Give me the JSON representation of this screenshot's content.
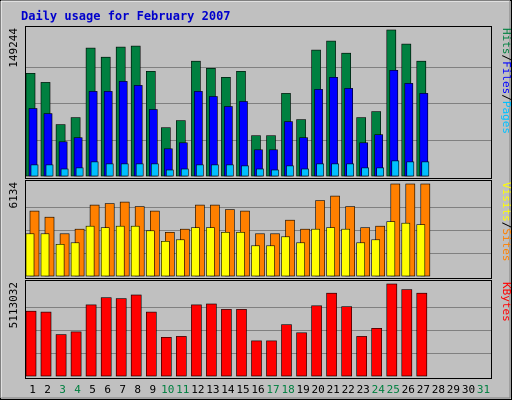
{
  "chart_data": {
    "type": "bar",
    "title": "Daily usage for February 2007",
    "categories": [
      "1",
      "2",
      "3",
      "4",
      "5",
      "6",
      "7",
      "8",
      "9",
      "10",
      "11",
      "12",
      "13",
      "14",
      "15",
      "16",
      "17",
      "18",
      "19",
      "20",
      "21",
      "22",
      "23",
      "24",
      "25",
      "26",
      "27",
      "28",
      "29",
      "30",
      "31"
    ],
    "weekend_days": [
      "3",
      "4",
      "10",
      "11",
      "17",
      "18",
      "24",
      "25",
      "31"
    ],
    "panels": [
      {
        "max_label": "149244",
        "legend": [
          {
            "text": "Pages",
            "color": "#00c0ff"
          },
          {
            "text": "Files",
            "color": "#0000ff"
          },
          {
            "text": "Hits",
            "color": "#008040"
          }
        ],
        "series": [
          {
            "name": "Hits",
            "color": "#008040",
            "values": [
              102000,
              93000,
              51000,
              58000,
              127000,
              118000,
              128000,
              129000,
              104000,
              48000,
              55000,
              114000,
              107000,
              98000,
              104000,
              40000,
              40000,
              82000,
              56000,
              125000,
              134000,
              122000,
              58000,
              64000,
              145000,
              131000,
              114000,
              0,
              0,
              0,
              0
            ]
          },
          {
            "name": "Files",
            "color": "#0000ff",
            "values": [
              67000,
              62000,
              34000,
              38000,
              84000,
              84000,
              94000,
              90000,
              66000,
              27000,
              33000,
              84000,
              79000,
              69000,
              74000,
              26000,
              26000,
              54000,
              38000,
              86000,
              98000,
              87000,
              33000,
              41000,
              105000,
              92000,
              82000,
              0,
              0,
              0,
              0
            ]
          },
          {
            "name": "Pages",
            "color": "#00c0ff",
            "values": [
              11000,
              11000,
              7000,
              8000,
              14000,
              12000,
              12000,
              12000,
              12000,
              6000,
              7000,
              11000,
              11000,
              11000,
              10000,
              7000,
              6000,
              10000,
              7000,
              12000,
              12000,
              12000,
              8000,
              8000,
              15000,
              14000,
              14000,
              0,
              0,
              0,
              0
            ]
          }
        ]
      },
      {
        "max_label": "6134",
        "legend": [
          {
            "text": "Sites",
            "color": "#ff8000"
          },
          {
            "text": "Visits",
            "color": "#ffff00"
          }
        ],
        "series": [
          {
            "name": "Visits",
            "color": "#ff8000",
            "values": [
              4300,
              3900,
              2800,
              3100,
              4700,
              4800,
              4900,
              4600,
              4300,
              2900,
              3100,
              4700,
              4700,
              4400,
              4300,
              2800,
              2800,
              3700,
              3100,
              5000,
              5300,
              4600,
              3200,
              3300,
              6100,
              6100,
              6100,
              0,
              0,
              0,
              0
            ]
          },
          {
            "name": "Sites",
            "color": "#ffff00",
            "values": [
              2800,
              2800,
              2100,
              2200,
              3300,
              3200,
              3300,
              3300,
              3000,
              2300,
              2400,
              3200,
              3200,
              2900,
              2900,
              2000,
              2000,
              2600,
              2200,
              3100,
              3200,
              3100,
              2200,
              2400,
              3600,
              3500,
              3400,
              0,
              0,
              0,
              0
            ]
          }
        ]
      },
      {
        "max_label": "5113032",
        "legend": [
          {
            "text": "KBytes",
            "color": "#ff0000"
          }
        ],
        "series": [
          {
            "name": "KBytes",
            "color": "#ff0000",
            "values": [
              3600000,
              3550000,
              2300000,
              2450000,
              3950000,
              4350000,
              4300000,
              4500000,
              3550000,
              2150000,
              2200000,
              3950000,
              4000000,
              3700000,
              3700000,
              1950000,
              1950000,
              2850000,
              2400000,
              3900000,
              4600000,
              3850000,
              2200000,
              2650000,
              5113032,
              4800000,
              4600000,
              0,
              0,
              0,
              0
            ]
          }
        ]
      }
    ],
    "grid": true,
    "legend_placement": "right"
  }
}
